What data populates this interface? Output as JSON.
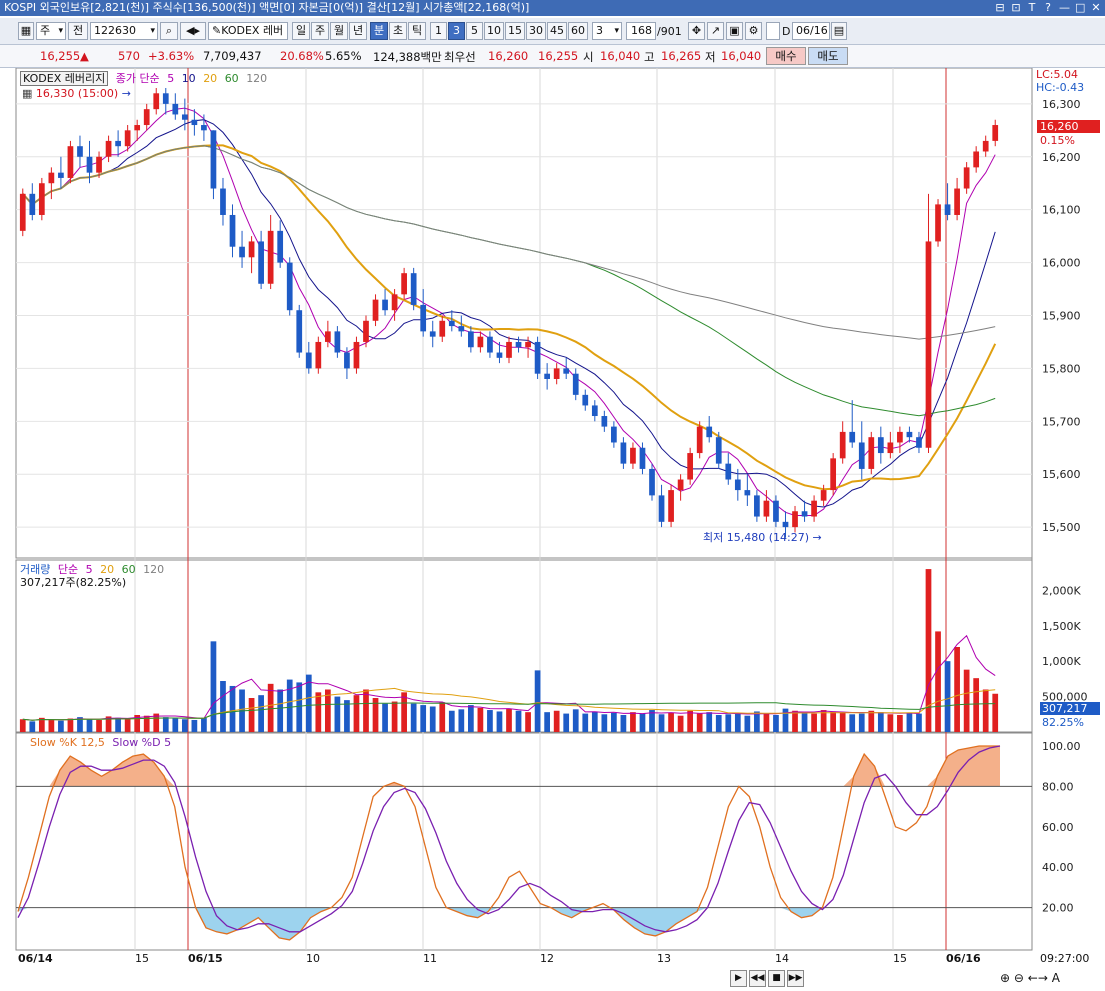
{
  "titlebar": {
    "text": "KOSPI 외국인보유[2,821(천)] 주식수[136,500(천)] 액면[0] 자본금[0(억)] 결산[12월] 시가총액[22,168(억)]",
    "buttons": [
      "⊟",
      "⊡",
      "T",
      "?",
      "—",
      "□",
      "✕"
    ]
  },
  "toolbar": {
    "market": "주",
    "prev_label": "전",
    "code": "122630",
    "search_icon": "search-icon",
    "name_short": "KODEX 레버",
    "periods": [
      "일",
      "주",
      "월",
      "년",
      "분",
      "초",
      "틱"
    ],
    "active_period": "분",
    "minutes": [
      "1",
      "3",
      "5",
      "10",
      "15",
      "30",
      "45",
      "60"
    ],
    "active_minute": "3",
    "multiplier": "3",
    "count": "168",
    "count_total": "/901",
    "checkbox_label": "D",
    "date": "06/16"
  },
  "quote": {
    "price": "16,255",
    "change": "570",
    "change_pct": "+3.63%",
    "volume": "7,709,437",
    "volume_ratio": "20.68%",
    "turnover": "5.65%",
    "amount": "124,388백만",
    "best_label": "최우선",
    "best_ask": "16,260",
    "best_bid": "16,255",
    "open_label": "시",
    "open": "16,040",
    "high_label": "고",
    "high": "16,265",
    "low_label": "저",
    "low": "16,040",
    "buy_button": "매수",
    "sell_button": "매도"
  },
  "price_panel": {
    "name": "KODEX 레버리지",
    "legend_title": "종가 단순",
    "ma_periods": [
      "5",
      "10",
      "20",
      "60",
      "120"
    ],
    "ma_colors": [
      "#b000b0",
      "#14148c",
      "#e0a010",
      "#2e8b2e",
      "#808080"
    ],
    "high_marker": "16,330 (15:00)",
    "low_marker": "최저 15,480 (14:27)",
    "lc": "LC:5.04",
    "hc": "HC:-0.43",
    "last_price": "16,260",
    "last_pct": "0.15%",
    "y_ticks": [
      "16,300",
      "16,200",
      "16,100",
      "16,000",
      "15,900",
      "15,800",
      "15,700",
      "15,600",
      "15,500"
    ]
  },
  "volume_panel": {
    "title": "거래량",
    "legend_title": "단순",
    "ma_periods": [
      "5",
      "20",
      "60",
      "120"
    ],
    "value_line": "307,217주(82.25%)",
    "last_value": "307,217",
    "last_pct": "82.25%",
    "y_ticks": [
      "2,000K",
      "1,500K",
      "1,000K",
      "500,000"
    ]
  },
  "stoch_panel": {
    "title": "Slow %K 12,5",
    "title_d": "Slow %D 5",
    "y_ticks": [
      "100.00",
      "80.00",
      "60.00",
      "40.00",
      "20.00"
    ]
  },
  "x_axis": {
    "labels": [
      "06/14",
      "15",
      "06/15",
      "10",
      "11",
      "12",
      "13",
      "14",
      "15",
      "06/16"
    ],
    "time": "09:27:00"
  },
  "colors": {
    "up": "#e02020",
    "down": "#1e5bc6",
    "ma5": "#b000b0",
    "ma10": "#14148c",
    "ma20": "#e0a010",
    "ma60": "#2e8b2e",
    "ma120": "#808080",
    "overbought_fill": "#f4b08a",
    "oversold_fill": "#9dd3ee"
  },
  "chart_data": {
    "type": "candlestick",
    "bars": [
      {
        "o": 16060,
        "h": 16140,
        "l": 16050,
        "c": 16130
      },
      {
        "o": 16130,
        "h": 16150,
        "l": 16080,
        "c": 16090
      },
      {
        "o": 16090,
        "h": 16160,
        "l": 16080,
        "c": 16150
      },
      {
        "o": 16150,
        "h": 16180,
        "l": 16120,
        "c": 16170
      },
      {
        "o": 16170,
        "h": 16200,
        "l": 16140,
        "c": 16160
      },
      {
        "o": 16160,
        "h": 16230,
        "l": 16150,
        "c": 16220
      },
      {
        "o": 16220,
        "h": 16240,
        "l": 16180,
        "c": 16200
      },
      {
        "o": 16200,
        "h": 16230,
        "l": 16150,
        "c": 16170
      },
      {
        "o": 16170,
        "h": 16210,
        "l": 16160,
        "c": 16200
      },
      {
        "o": 16200,
        "h": 16240,
        "l": 16190,
        "c": 16230
      },
      {
        "o": 16230,
        "h": 16250,
        "l": 16200,
        "c": 16220
      },
      {
        "o": 16220,
        "h": 16260,
        "l": 16210,
        "c": 16250
      },
      {
        "o": 16250,
        "h": 16270,
        "l": 16230,
        "c": 16260
      },
      {
        "o": 16260,
        "h": 16300,
        "l": 16250,
        "c": 16290
      },
      {
        "o": 16290,
        "h": 16330,
        "l": 16280,
        "c": 16320
      },
      {
        "o": 16320,
        "h": 16330,
        "l": 16280,
        "c": 16300
      },
      {
        "o": 16300,
        "h": 16320,
        "l": 16270,
        "c": 16280
      },
      {
        "o": 16280,
        "h": 16310,
        "l": 16250,
        "c": 16270
      },
      {
        "o": 16270,
        "h": 16290,
        "l": 16240,
        "c": 16260
      },
      {
        "o": 16260,
        "h": 16280,
        "l": 16230,
        "c": 16250
      },
      {
        "o": 16250,
        "h": 16250,
        "l": 16120,
        "c": 16140
      },
      {
        "o": 16140,
        "h": 16160,
        "l": 16070,
        "c": 16090
      },
      {
        "o": 16090,
        "h": 16110,
        "l": 16010,
        "c": 16030
      },
      {
        "o": 16030,
        "h": 16060,
        "l": 15990,
        "c": 16010
      },
      {
        "o": 16010,
        "h": 16050,
        "l": 15980,
        "c": 16040
      },
      {
        "o": 16040,
        "h": 16060,
        "l": 15950,
        "c": 15960
      },
      {
        "o": 15960,
        "h": 16090,
        "l": 15950,
        "c": 16060
      },
      {
        "o": 16060,
        "h": 16080,
        "l": 15990,
        "c": 16000
      },
      {
        "o": 16000,
        "h": 16010,
        "l": 15900,
        "c": 15910
      },
      {
        "o": 15910,
        "h": 15920,
        "l": 15820,
        "c": 15830
      },
      {
        "o": 15830,
        "h": 15850,
        "l": 15790,
        "c": 15800
      },
      {
        "o": 15800,
        "h": 15860,
        "l": 15790,
        "c": 15850
      },
      {
        "o": 15850,
        "h": 15890,
        "l": 15840,
        "c": 15870
      },
      {
        "o": 15870,
        "h": 15880,
        "l": 15820,
        "c": 15830
      },
      {
        "o": 15830,
        "h": 15840,
        "l": 15780,
        "c": 15800
      },
      {
        "o": 15800,
        "h": 15860,
        "l": 15790,
        "c": 15850
      },
      {
        "o": 15850,
        "h": 15900,
        "l": 15840,
        "c": 15890
      },
      {
        "o": 15890,
        "h": 15940,
        "l": 15880,
        "c": 15930
      },
      {
        "o": 15930,
        "h": 15950,
        "l": 15900,
        "c": 15910
      },
      {
        "o": 15910,
        "h": 15950,
        "l": 15890,
        "c": 15940
      },
      {
        "o": 15940,
        "h": 15990,
        "l": 15930,
        "c": 15980
      },
      {
        "o": 15980,
        "h": 15990,
        "l": 15910,
        "c": 15920
      },
      {
        "o": 15920,
        "h": 15950,
        "l": 15860,
        "c": 15870
      },
      {
        "o": 15870,
        "h": 15890,
        "l": 15840,
        "c": 15860
      },
      {
        "o": 15860,
        "h": 15900,
        "l": 15850,
        "c": 15890
      },
      {
        "o": 15890,
        "h": 15910,
        "l": 15870,
        "c": 15880
      },
      {
        "o": 15880,
        "h": 15900,
        "l": 15860,
        "c": 15870
      },
      {
        "o": 15870,
        "h": 15880,
        "l": 15830,
        "c": 15840
      },
      {
        "o": 15840,
        "h": 15870,
        "l": 15830,
        "c": 15860
      },
      {
        "o": 15860,
        "h": 15870,
        "l": 15820,
        "c": 15830
      },
      {
        "o": 15830,
        "h": 15850,
        "l": 15810,
        "c": 15820
      },
      {
        "o": 15820,
        "h": 15860,
        "l": 15810,
        "c": 15850
      },
      {
        "o": 15850,
        "h": 15860,
        "l": 15830,
        "c": 15840
      },
      {
        "o": 15840,
        "h": 15860,
        "l": 15820,
        "c": 15850
      },
      {
        "o": 15850,
        "h": 15860,
        "l": 15780,
        "c": 15790
      },
      {
        "o": 15790,
        "h": 15810,
        "l": 15760,
        "c": 15780
      },
      {
        "o": 15780,
        "h": 15810,
        "l": 15770,
        "c": 15800
      },
      {
        "o": 15800,
        "h": 15820,
        "l": 15780,
        "c": 15790
      },
      {
        "o": 15790,
        "h": 15800,
        "l": 15740,
        "c": 15750
      },
      {
        "o": 15750,
        "h": 15760,
        "l": 15720,
        "c": 15730
      },
      {
        "o": 15730,
        "h": 15740,
        "l": 15700,
        "c": 15710
      },
      {
        "o": 15710,
        "h": 15720,
        "l": 15680,
        "c": 15690
      },
      {
        "o": 15690,
        "h": 15700,
        "l": 15650,
        "c": 15660
      },
      {
        "o": 15660,
        "h": 15670,
        "l": 15610,
        "c": 15620
      },
      {
        "o": 15620,
        "h": 15660,
        "l": 15610,
        "c": 15650
      },
      {
        "o": 15650,
        "h": 15660,
        "l": 15600,
        "c": 15610
      },
      {
        "o": 15610,
        "h": 15620,
        "l": 15550,
        "c": 15560
      },
      {
        "o": 15560,
        "h": 15580,
        "l": 15500,
        "c": 15510
      },
      {
        "o": 15510,
        "h": 15580,
        "l": 15500,
        "c": 15570
      },
      {
        "o": 15570,
        "h": 15600,
        "l": 15550,
        "c": 15590
      },
      {
        "o": 15590,
        "h": 15650,
        "l": 15580,
        "c": 15640
      },
      {
        "o": 15640,
        "h": 15700,
        "l": 15630,
        "c": 15690
      },
      {
        "o": 15690,
        "h": 15710,
        "l": 15660,
        "c": 15670
      },
      {
        "o": 15670,
        "h": 15680,
        "l": 15610,
        "c": 15620
      },
      {
        "o": 15620,
        "h": 15640,
        "l": 15580,
        "c": 15590
      },
      {
        "o": 15590,
        "h": 15610,
        "l": 15550,
        "c": 15570
      },
      {
        "o": 15570,
        "h": 15600,
        "l": 15540,
        "c": 15560
      },
      {
        "o": 15560,
        "h": 15570,
        "l": 15510,
        "c": 15520
      },
      {
        "o": 15520,
        "h": 15570,
        "l": 15510,
        "c": 15550
      },
      {
        "o": 15550,
        "h": 15560,
        "l": 15500,
        "c": 15510
      },
      {
        "o": 15510,
        "h": 15530,
        "l": 15480,
        "c": 15500
      },
      {
        "o": 15500,
        "h": 15540,
        "l": 15490,
        "c": 15530
      },
      {
        "o": 15530,
        "h": 15550,
        "l": 15510,
        "c": 15520
      },
      {
        "o": 15520,
        "h": 15560,
        "l": 15510,
        "c": 15550
      },
      {
        "o": 15550,
        "h": 15580,
        "l": 15540,
        "c": 15570
      },
      {
        "o": 15570,
        "h": 15640,
        "l": 15560,
        "c": 15630
      },
      {
        "o": 15630,
        "h": 15700,
        "l": 15620,
        "c": 15680
      },
      {
        "o": 15680,
        "h": 15740,
        "l": 15650,
        "c": 15660
      },
      {
        "o": 15660,
        "h": 15700,
        "l": 15590,
        "c": 15610
      },
      {
        "o": 15610,
        "h": 15680,
        "l": 15600,
        "c": 15670
      },
      {
        "o": 15670,
        "h": 15690,
        "l": 15620,
        "c": 15640
      },
      {
        "o": 15640,
        "h": 15680,
        "l": 15630,
        "c": 15660
      },
      {
        "o": 15660,
        "h": 15690,
        "l": 15640,
        "c": 15680
      },
      {
        "o": 15680,
        "h": 15690,
        "l": 15660,
        "c": 15670
      },
      {
        "o": 15670,
        "h": 15680,
        "l": 15640,
        "c": 15650
      },
      {
        "o": 15650,
        "h": 16130,
        "l": 15640,
        "c": 16040
      },
      {
        "o": 16040,
        "h": 16120,
        "l": 16030,
        "c": 16110
      },
      {
        "o": 16110,
        "h": 16150,
        "l": 16080,
        "c": 16090
      },
      {
        "o": 16090,
        "h": 16160,
        "l": 16080,
        "c": 16140
      },
      {
        "o": 16140,
        "h": 16190,
        "l": 16130,
        "c": 16180
      },
      {
        "o": 16180,
        "h": 16220,
        "l": 16170,
        "c": 16210
      },
      {
        "o": 16210,
        "h": 16240,
        "l": 16200,
        "c": 16230
      },
      {
        "o": 16230,
        "h": 16270,
        "l": 16220,
        "c": 16260
      }
    ],
    "volume": [
      180,
      150,
      200,
      170,
      160,
      190,
      210,
      180,
      170,
      220,
      200,
      190,
      240,
      230,
      260,
      210,
      190,
      180,
      170,
      200,
      1280,
      720,
      650,
      600,
      480,
      520,
      680,
      600,
      740,
      700,
      810,
      560,
      600,
      500,
      450,
      520,
      600,
      480,
      400,
      430,
      560,
      400,
      380,
      360,
      420,
      300,
      320,
      380,
      340,
      310,
      290,
      330,
      300,
      280,
      870,
      280,
      300,
      260,
      320,
      260,
      290,
      250,
      270,
      240,
      280,
      260,
      310,
      250,
      270,
      230,
      300,
      260,
      280,
      240,
      250,
      270,
      230,
      290,
      260,
      240,
      330,
      300,
      280,
      260,
      310,
      290,
      270,
      250,
      260,
      300,
      280,
      250,
      240,
      270,
      260,
      2300,
      1420,
      1000,
      1200,
      880,
      760,
      600,
      540
    ]
  },
  "stoch_k": [
    18,
    35,
    55,
    75,
    88,
    95,
    92,
    88,
    85,
    88,
    92,
    95,
    96,
    92,
    85,
    70,
    40,
    20,
    10,
    8,
    7,
    9,
    12,
    15,
    10,
    5,
    4,
    8,
    15,
    18,
    20,
    25,
    35,
    55,
    75,
    80,
    82,
    80,
    70,
    50,
    30,
    20,
    18,
    16,
    15,
    18,
    25,
    35,
    38,
    30,
    22,
    20,
    17,
    15,
    18,
    20,
    22,
    19,
    14,
    10,
    7,
    6,
    8,
    12,
    15,
    18,
    30,
    50,
    70,
    80,
    75,
    60,
    40,
    25,
    18,
    15,
    16,
    20,
    35,
    60,
    85,
    96,
    90,
    75,
    60,
    58,
    62,
    70,
    85,
    95,
    98,
    99,
    100,
    100,
    100
  ],
  "stoch_d": [
    15,
    25,
    42,
    60,
    76,
    87,
    90,
    90,
    88,
    88,
    89,
    91,
    93,
    93,
    90,
    82,
    65,
    45,
    28,
    16,
    11,
    9,
    10,
    12,
    12,
    10,
    8,
    8,
    11,
    14,
    17,
    21,
    28,
    42,
    58,
    70,
    77,
    79,
    77,
    69,
    57,
    43,
    32,
    24,
    19,
    17,
    19,
    24,
    30,
    32,
    30,
    26,
    23,
    19,
    18,
    18,
    19,
    19,
    17,
    14,
    11,
    9,
    8,
    9,
    11,
    14,
    20,
    32,
    48,
    63,
    72,
    71,
    62,
    50,
    38,
    28,
    22,
    19,
    24,
    36,
    54,
    72,
    84,
    86,
    80,
    72,
    66,
    66,
    70,
    78,
    87,
    93,
    97,
    99,
    100
  ]
}
